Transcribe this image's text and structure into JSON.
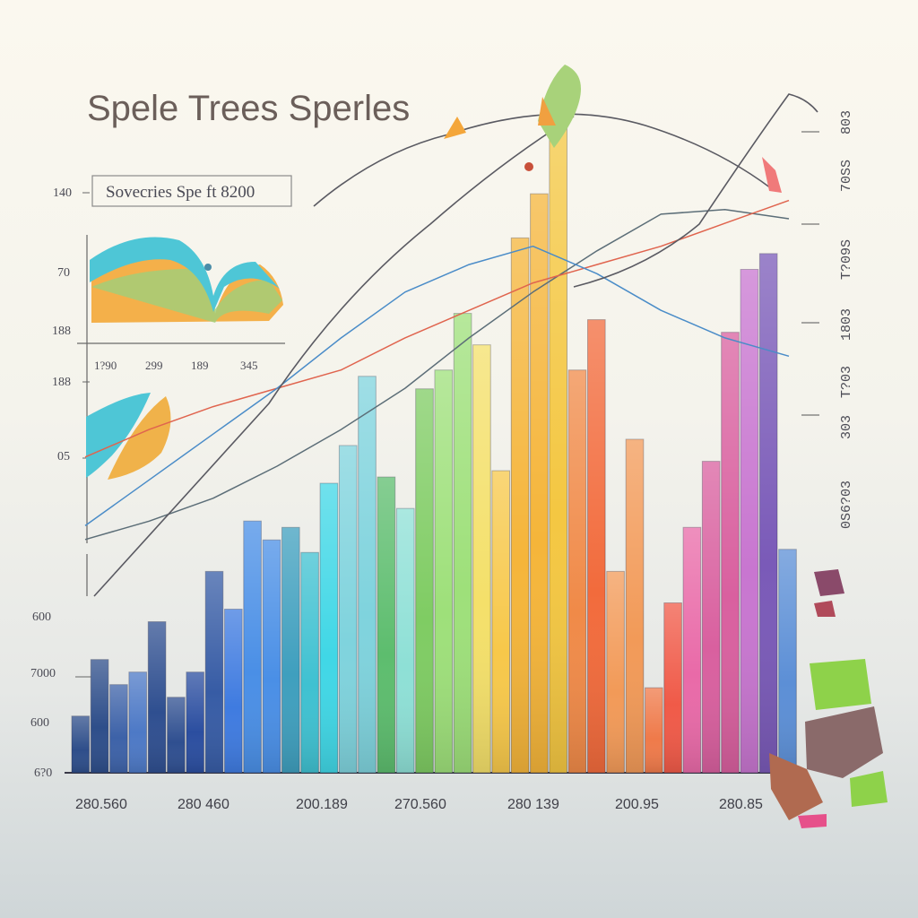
{
  "chart_data": {
    "type": "bar",
    "title": "Spele Trees Sperles",
    "subtitle": "Sovecries Spe ft 8200",
    "y_left_ticks": [
      "140",
      "70",
      "188",
      "188",
      "05",
      "600",
      "7000",
      "600",
      "6?0"
    ],
    "y_right_ticks": [
      "803",
      "70SS",
      "T?09S",
      "1803",
      "T?03",
      "303",
      "0S6?03"
    ],
    "x_tick_labels": [
      "280.560",
      "280 460",
      "200.189",
      "270.560",
      "280 139",
      "200.95",
      "280.85"
    ],
    "inset_tick_labels": [
      "1?90",
      "299",
      "189",
      "345"
    ],
    "values": [
      18,
      36,
      28,
      32,
      48,
      24,
      32,
      64,
      52,
      80,
      74,
      78,
      70,
      92,
      104,
      126,
      94,
      84,
      122,
      128,
      146,
      136,
      96,
      170,
      184,
      206,
      128,
      144,
      64,
      106,
      27,
      54,
      78,
      99,
      140,
      160,
      165,
      71
    ],
    "colors": [
      "#2e4e8a",
      "#3d62a8",
      "#4d79c6",
      "#2f4f90",
      "#2b4ea0",
      "#375ca5",
      "#3f7be0",
      "#4a8fe6",
      "#3f9fbe",
      "#3fc1d1",
      "#40d7e6",
      "#7fd3dd",
      "#5dbd6e",
      "#8ee0d6",
      "#7fcc63",
      "#9ee07a",
      "#f4e06a",
      "#f7c84a",
      "#f5b53a",
      "#f4c742",
      "#f08a48",
      "#f26b3c",
      "#f29a58",
      "#ef7a4a",
      "#f05a48",
      "#e96aa8",
      "#d9609f",
      "#c876d0",
      "#7a5ab8",
      "#5c8fd6"
    ],
    "series": [
      {
        "color": "#5c6e78",
        "values": [
          4,
          12,
          22,
          36,
          52,
          70,
          92,
          112,
          130,
          146,
          148,
          144
        ]
      },
      {
        "color": "#e0644e",
        "values": [
          40,
          52,
          62,
          70,
          78,
          92,
          104,
          116,
          124,
          132,
          142,
          152
        ]
      },
      {
        "color": "#4a8cc8",
        "values": [
          10,
          30,
          50,
          70,
          92,
          112,
          124,
          132,
          120,
          104,
          92,
          84
        ]
      }
    ],
    "grid": false,
    "legend": "none"
  }
}
